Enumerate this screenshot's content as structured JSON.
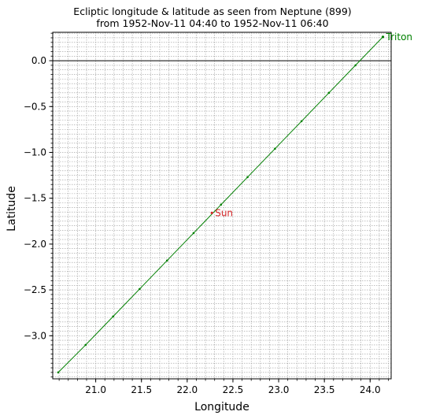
{
  "chart_data": {
    "type": "line",
    "title": "Ecliptic longitude & latitude as seen from Neptune (899)",
    "subtitle": "from 1952-Nov-11 04:40 to 1952-Nov-11 06:40",
    "xlabel": "Longitude",
    "ylabel": "Latitude",
    "xlim": [
      20.53,
      24.23
    ],
    "ylim": [
      -3.47,
      0.31
    ],
    "x_ticks": [
      21.0,
      21.5,
      22.0,
      22.5,
      23.0,
      23.5,
      24.0
    ],
    "x_tick_labels": [
      "21.0",
      "21.5",
      "22.0",
      "22.5",
      "23.0",
      "23.5",
      "24.0"
    ],
    "y_ticks": [
      0.0,
      -0.5,
      -1.0,
      -1.5,
      -2.0,
      -2.5,
      -3.0
    ],
    "y_tick_labels": [
      "0.0",
      "−0.5",
      "−1.0",
      "−1.5",
      "−2.0",
      "−2.5",
      "−3.0"
    ],
    "grid": true,
    "zero_line": 0.0,
    "series": [
      {
        "name": "Triton",
        "color": "#008000",
        "x": [
          20.59,
          20.89,
          21.19,
          21.48,
          21.78,
          22.07,
          22.37,
          22.66,
          22.96,
          23.25,
          23.55,
          23.84,
          24.14
        ],
        "y": [
          -3.4,
          -3.1,
          -2.79,
          -2.49,
          -2.18,
          -1.88,
          -1.57,
          -1.27,
          -0.96,
          -0.66,
          -0.35,
          -0.05,
          0.26
        ]
      }
    ],
    "annotations": [
      {
        "text": "Triton",
        "x": 24.14,
        "y": 0.26,
        "color": "#008000"
      },
      {
        "text": "Sun",
        "x": 22.27,
        "y": -1.66,
        "color": "#d62728"
      }
    ]
  }
}
